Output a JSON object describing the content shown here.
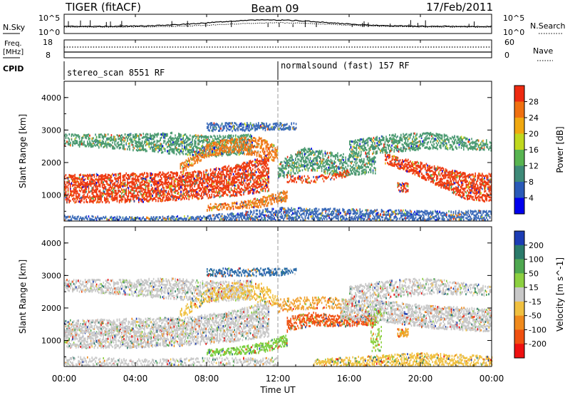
{
  "header": {
    "radar": "TIGER (fitACF)",
    "beam": "Beam 09",
    "date": "17/Feb/2011"
  },
  "strips": {
    "nsky_label": "N.Sky",
    "nsearch_label": "N.Search",
    "sky_ticks_left": [
      "10^5",
      "10^0"
    ],
    "sky_ticks_right": [
      "10^5",
      "10^0"
    ],
    "freq_label": "Freq.",
    "freq_unit": "[MHz]",
    "freq_ticks": [
      "18",
      "8"
    ],
    "nave_label": "Nave",
    "nave_ticks": [
      "60",
      "0"
    ],
    "cpid_label": "CPID",
    "cpid_1": "stereo_scan 8551 RF",
    "cpid_2": "normalsound (fast) 157 RF"
  },
  "chart_data": [
    {
      "type": "heatmap",
      "name": "power",
      "ylabel": "Slant Range [km]",
      "ylim": [
        200,
        4500
      ],
      "yticks": [
        "1000",
        "2000",
        "3000",
        "4000"
      ],
      "xlabel": "Time UT",
      "xlim": [
        0,
        24
      ],
      "xticks": [
        "00:00",
        "04:00",
        "08:00",
        "12:00",
        "16:00",
        "20:00",
        "00:00"
      ],
      "colorbar": {
        "label": "Power [dB]",
        "ticks": [
          "4",
          "8",
          "12",
          "16",
          "20",
          "24",
          "28"
        ],
        "colors": [
          "#0000ee",
          "#2a5ab8",
          "#3e8a78",
          "#58b450",
          "#c0d81e",
          "#f0a810",
          "#f07010",
          "#ee2a10"
        ]
      },
      "bands": [
        {
          "t": [
            0,
            3.5,
            7,
            9.5,
            11.5
          ],
          "lo": [
            800,
            800,
            880,
            1000,
            1150
          ],
          "hi": [
            1650,
            1700,
            1750,
            1950,
            2250
          ],
          "color": "#ee3a10",
          "w": 1
        },
        {
          "t": [
            0,
            3,
            6,
            8,
            10.5
          ],
          "lo": [
            2550,
            2450,
            2300,
            2200,
            2300
          ],
          "hi": [
            2900,
            2900,
            2950,
            2850,
            2900
          ],
          "color": "#4a9a70",
          "w": 0.8
        },
        {
          "t": [
            6.5,
            8,
            9.5,
            11,
            12
          ],
          "lo": [
            1700,
            2200,
            2350,
            2200,
            2050
          ],
          "hi": [
            2000,
            2600,
            2800,
            2800,
            2500
          ],
          "color": "#f07a1a",
          "w": 0.9
        },
        {
          "t": [
            8,
            9.5,
            11,
            12.5
          ],
          "lo": [
            550,
            600,
            650,
            850
          ],
          "hi": [
            750,
            800,
            950,
            1200
          ],
          "color": "#f07a1a",
          "w": 1
        },
        {
          "t": [
            8,
            10,
            13
          ],
          "lo": [
            3000,
            3000,
            3050
          ],
          "hi": [
            3250,
            3250,
            3250
          ],
          "color": "#3a6ab8",
          "w": 0.9
        },
        {
          "t": [
            12,
            13.5,
            15.5,
            17.5
          ],
          "lo": [
            1500,
            1800,
            1600,
            1700
          ],
          "hi": [
            2050,
            2500,
            2300,
            2200
          ],
          "color": "#4a9a70",
          "w": 0.8
        },
        {
          "t": [
            12.5,
            14,
            16
          ],
          "lo": [
            1400,
            1400,
            1600
          ],
          "hi": [
            1650,
            1600,
            1800
          ],
          "color": "#ee3a10",
          "w": 0.6
        },
        {
          "t": [
            18,
            19.5,
            21,
            22.5,
            24
          ],
          "lo": [
            2000,
            1700,
            1300,
            900,
            800
          ],
          "hi": [
            2300,
            2100,
            1900,
            1700,
            1700
          ],
          "color": "#ee3a10",
          "w": 1
        },
        {
          "t": [
            16,
            18.5,
            20.5,
            24
          ],
          "lo": [
            2200,
            2350,
            2450,
            2400
          ],
          "hi": [
            2700,
            2900,
            2950,
            2700
          ],
          "color": "#4a9a70",
          "w": 0.8
        },
        {
          "t": [
            0,
            4,
            8,
            12,
            16,
            20,
            24
          ],
          "lo": [
            250,
            250,
            250,
            250,
            250,
            250,
            250
          ],
          "hi": [
            400,
            350,
            400,
            650,
            600,
            550,
            550
          ],
          "color": "#3a6ab8",
          "w": 0.9
        },
        {
          "t": [
            18.7,
            19.3
          ],
          "lo": [
            1150,
            1100
          ],
          "hi": [
            1400,
            1400
          ],
          "color": "#ee3a10",
          "w": 1
        }
      ]
    },
    {
      "type": "heatmap",
      "name": "velocity",
      "ylabel": "Slant Range [km]",
      "ylim": [
        200,
        4500
      ],
      "yticks": [
        "1000",
        "2000",
        "3000",
        "4000"
      ],
      "xlabel": "Time UT",
      "xlim": [
        0,
        24
      ],
      "xticks": [
        "00:00",
        "04:00",
        "08:00",
        "12:00",
        "16:00",
        "20:00",
        "00:00"
      ],
      "colorbar": {
        "label": "Velocity [m s^-1]",
        "ticks": [
          "200",
          "100",
          "50",
          "15",
          "-15",
          "-50",
          "-100",
          "-200"
        ],
        "colors": [
          "#1c3cb4",
          "#2a7a6a",
          "#4ea850",
          "#8cd040",
          "#c8c8c8",
          "#f0c040",
          "#f08a1c",
          "#f05010",
          "#ee1010"
        ]
      },
      "bands": [
        {
          "t": [
            0,
            3.5,
            7,
            9.5,
            11.5
          ],
          "lo": [
            800,
            800,
            880,
            1000,
            1150
          ],
          "hi": [
            1650,
            1700,
            1750,
            1950,
            2250
          ],
          "color": "#c8c8c8",
          "w": 1
        },
        {
          "t": [
            0,
            3,
            6,
            8,
            10.5
          ],
          "lo": [
            2550,
            2450,
            2300,
            2200,
            2300
          ],
          "hi": [
            2900,
            2900,
            2950,
            2850,
            2900
          ],
          "color": "#c8c8c8",
          "w": 0.8
        },
        {
          "t": [
            6.5,
            8,
            9.5,
            11,
            12
          ],
          "lo": [
            1700,
            2200,
            2350,
            2200,
            2050
          ],
          "hi": [
            2000,
            2600,
            2800,
            2800,
            2500
          ],
          "color": "#f0c040",
          "w": 0.6
        },
        {
          "t": [
            8,
            9.5,
            11,
            12.5
          ],
          "lo": [
            550,
            600,
            650,
            850
          ],
          "hi": [
            750,
            800,
            950,
            1200
          ],
          "color": "#7ad040",
          "w": 1
        },
        {
          "t": [
            8,
            10,
            13
          ],
          "lo": [
            3000,
            3000,
            3050
          ],
          "hi": [
            3250,
            3250,
            3250
          ],
          "color": "#2a6aa8",
          "w": 0.7
        },
        {
          "t": [
            12.5,
            14,
            15.5,
            17.5
          ],
          "lo": [
            1300,
            1500,
            1450,
            1500
          ],
          "hi": [
            1750,
            1900,
            1800,
            1800
          ],
          "color": "#f05010",
          "w": 0.9
        },
        {
          "t": [
            12,
            14,
            16
          ],
          "lo": [
            1900,
            2000,
            2000
          ],
          "hi": [
            2300,
            2400,
            2300
          ],
          "color": "#f0a030",
          "w": 0.5
        },
        {
          "t": [
            15.5,
            18,
            20.5,
            24
          ],
          "lo": [
            1700,
            1600,
            1400,
            1300
          ],
          "hi": [
            2300,
            2250,
            2100,
            2000
          ],
          "color": "#c8c8c8",
          "w": 1
        },
        {
          "t": [
            16,
            18.5,
            20.5,
            24
          ],
          "lo": [
            2200,
            2350,
            2450,
            2400
          ],
          "hi": [
            2700,
            2900,
            2950,
            2700
          ],
          "color": "#c8c8c8",
          "w": 0.7
        },
        {
          "t": [
            14,
            17,
            20,
            24
          ],
          "lo": [
            250,
            250,
            250,
            250
          ],
          "hi": [
            450,
            550,
            650,
            550
          ],
          "color": "#f0c040",
          "w": 0.8
        },
        {
          "t": [
            0,
            4,
            8,
            12
          ],
          "lo": [
            250,
            250,
            250,
            250
          ],
          "hi": [
            550,
            450,
            500,
            500
          ],
          "color": "#c8c8c8",
          "w": 0.6
        },
        {
          "t": [
            18.7,
            19.3
          ],
          "lo": [
            1150,
            1100
          ],
          "hi": [
            1400,
            1400
          ],
          "color": "#f0a020",
          "w": 1
        },
        {
          "t": [
            17.2,
            17.8
          ],
          "lo": [
            700,
            700
          ],
          "hi": [
            2000,
            2000
          ],
          "color": "#8cd040",
          "w": 0.5
        }
      ]
    }
  ]
}
